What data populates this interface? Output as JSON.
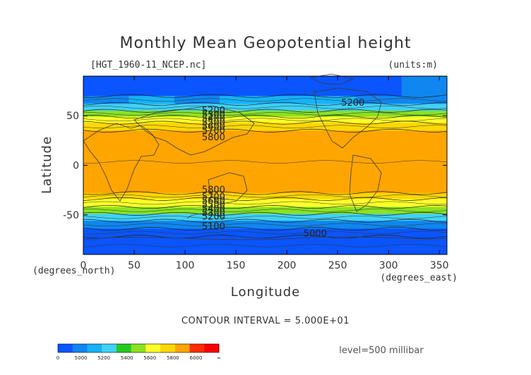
{
  "chart_data": {
    "type": "heatmap",
    "title": "Monthly Mean Geopotential height",
    "file_label": "[HGT_1960-11_NCEP.nc]",
    "units_label": "(units:m)",
    "xlabel": "Longitude",
    "ylabel": "Latitude",
    "x_unit_label": "(degrees_east)",
    "y_unit_label": "(degrees_north)",
    "xlim": [
      0,
      357.5
    ],
    "ylim": [
      -90,
      90
    ],
    "x_ticks": [
      0,
      50,
      100,
      150,
      200,
      250,
      300,
      350
    ],
    "y_ticks": [
      50,
      0,
      -50
    ],
    "contour_interval_text": "CONTOUR INTERVAL = 5.000E+01",
    "level_text": "level=500 millibar",
    "colorbar": {
      "labels": [
        "0",
        "5000",
        "5200",
        "5400",
        "5600",
        "5800",
        "6000",
        "∞"
      ],
      "colors": [
        "#0a55ff",
        "#0f86f0",
        "#16b2f8",
        "#3fd2f5",
        "#28c81e",
        "#8ae21f",
        "#ffff29",
        "#ffd700",
        "#ffa500",
        "#ff2d00",
        "#ff0000"
      ]
    },
    "bands": [
      {
        "lat_top": 90,
        "values": [
          5040,
          5080,
          5080,
          5040,
          5040,
          5000,
          5080,
          5120
        ]
      },
      {
        "lat_top": 70,
        "values": [
          5160,
          5200,
          5120,
          5200,
          5240,
          5200,
          5180,
          5160
        ]
      },
      {
        "lat_top": 62,
        "values": [
          5320,
          5340,
          5340,
          5320,
          5340,
          5340,
          5320,
          5300
        ]
      },
      {
        "lat_top": 55,
        "values": [
          5500,
          5500,
          5520,
          5500,
          5500,
          5500,
          5500,
          5500
        ]
      },
      {
        "lat_top": 49,
        "values": [
          5660,
          5660,
          5660,
          5660,
          5660,
          5660,
          5660,
          5660
        ]
      },
      {
        "lat_top": 43,
        "values": [
          5760,
          5780,
          5780,
          5780,
          5780,
          5760,
          5760,
          5760
        ]
      },
      {
        "lat_top": 35,
        "values": [
          5860,
          5860,
          5860,
          5860,
          5860,
          5860,
          5860,
          5860
        ]
      },
      {
        "lat_top": -28,
        "values": [
          5760,
          5760,
          5760,
          5760,
          5760,
          5760,
          5760,
          5760
        ]
      },
      {
        "lat_top": -34,
        "values": [
          5660,
          5660,
          5660,
          5660,
          5660,
          5660,
          5660,
          5660
        ]
      },
      {
        "lat_top": -42,
        "values": [
          5520,
          5520,
          5520,
          5520,
          5520,
          5520,
          5520,
          5520
        ]
      },
      {
        "lat_top": -49,
        "values": [
          5340,
          5340,
          5340,
          5340,
          5340,
          5340,
          5340,
          5340
        ]
      },
      {
        "lat_top": -56,
        "values": [
          5180,
          5180,
          5180,
          5180,
          5180,
          5180,
          5180,
          5180
        ]
      },
      {
        "lat_top": -64,
        "values": [
          5050,
          5050,
          5050,
          5050,
          5050,
          5050,
          5050,
          5050
        ]
      },
      {
        "lat_top": -72,
        "values": [
          4980,
          4980,
          4980,
          4980,
          4980,
          4980,
          4980,
          4980
        ]
      },
      {
        "lat_bottom": -90
      }
    ],
    "contour_labels": [
      {
        "text": "5200",
        "lon": 128,
        "lat": 55
      },
      {
        "text": "5300",
        "lon": 128,
        "lat": 51
      },
      {
        "text": "5400",
        "lon": 128,
        "lat": 47
      },
      {
        "text": "5500",
        "lon": 128,
        "lat": 43
      },
      {
        "text": "5600",
        "lon": 128,
        "lat": 39
      },
      {
        "text": "5700",
        "lon": 128,
        "lat": 35
      },
      {
        "text": "5800",
        "lon": 128,
        "lat": 28
      },
      {
        "text": "5200",
        "lon": 265,
        "lat": 63
      },
      {
        "text": "5800",
        "lon": 128,
        "lat": -25
      },
      {
        "text": "5700",
        "lon": 128,
        "lat": -32
      },
      {
        "text": "5600",
        "lon": 128,
        "lat": -36
      },
      {
        "text": "5500",
        "lon": 128,
        "lat": -40
      },
      {
        "text": "5400",
        "lon": 128,
        "lat": -44
      },
      {
        "text": "5300",
        "lon": 128,
        "lat": -48
      },
      {
        "text": "5200",
        "lon": 128,
        "lat": -52
      },
      {
        "text": "5100",
        "lon": 128,
        "lat": -62
      },
      {
        "text": "5000",
        "lon": 228,
        "lat": -69
      }
    ]
  }
}
